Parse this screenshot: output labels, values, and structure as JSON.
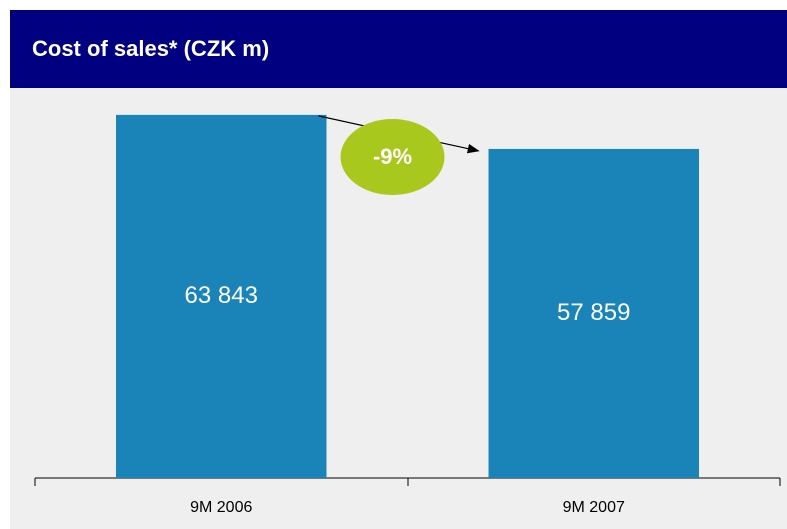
{
  "chart_data": {
    "type": "bar",
    "title": "Cost of sales* (CZK m)",
    "categories": [
      "9M 2006",
      "9M 2007"
    ],
    "values": [
      63843,
      57859
    ],
    "value_labels": [
      "63 843",
      "57 859"
    ],
    "color": "#1a83b8",
    "ylim": [
      0,
      64000
    ],
    "annotation": "-9%"
  }
}
